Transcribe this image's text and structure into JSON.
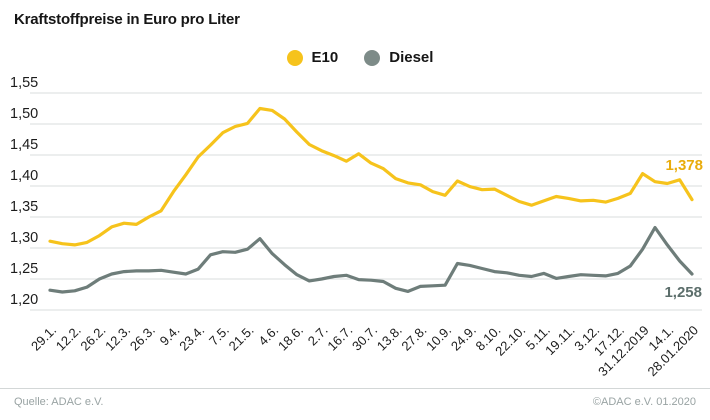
{
  "title": "Kraftstoffpreise in Euro pro Liter",
  "footer": {
    "source": "Quelle: ADAC e.V.",
    "copyright": "©ADAC e.V.  01.2020"
  },
  "colors": {
    "background": "#ffffff",
    "grid": "#d9dddd",
    "axis_text": "#1c1c1c",
    "title_text": "#161616",
    "footer_text": "#99a3a3",
    "divider": "#d3d7d7"
  },
  "chart_data": {
    "type": "line",
    "title": "Kraftstoffpreise in Euro pro Liter",
    "unit": "Euro pro Liter",
    "grid": "horizontal",
    "legend_position": "top-center",
    "ylim": [
      1.2,
      1.55
    ],
    "y_ticks": [
      1.55,
      1.5,
      1.45,
      1.4,
      1.35,
      1.3,
      1.25,
      1.2
    ],
    "y_tick_labels": [
      "1,55",
      "1,50",
      "1,45",
      "1,40",
      "1,35",
      "1,30",
      "1,25",
      "1,20"
    ],
    "x_tick_week_step": 2,
    "x_tick_labels": [
      "29.1.",
      "12.2.",
      "26.2.",
      "12.3.",
      "26.3.",
      "9.4.",
      "23.4.",
      "7.5.",
      "21.5.",
      "4.6.",
      "18.6.",
      "2.7.",
      "16.7.",
      "30.7.",
      "13.8.",
      "27.8.",
      "10.9.",
      "24.9.",
      "8.10.",
      "22.10.",
      "5.11.",
      "19.11.",
      "3.12.",
      "17.12.",
      "31.12.2019",
      "14.1.",
      "28.01.2020"
    ],
    "series": [
      {
        "name": "E10",
        "color": "#F6C31C",
        "legend_dot_color": "#F6C31C",
        "end_label": "1,378",
        "end_label_color": "#E9AC0C",
        "values": [
          1.311,
          1.307,
          1.305,
          1.309,
          1.32,
          1.334,
          1.34,
          1.338,
          1.35,
          1.36,
          1.391,
          1.418,
          1.447,
          1.466,
          1.486,
          1.496,
          1.501,
          1.525,
          1.522,
          1.508,
          1.487,
          1.467,
          1.457,
          1.449,
          1.44,
          1.452,
          1.437,
          1.428,
          1.412,
          1.405,
          1.402,
          1.391,
          1.385,
          1.408,
          1.399,
          1.394,
          1.395,
          1.385,
          1.375,
          1.369,
          1.376,
          1.383,
          1.38,
          1.376,
          1.377,
          1.374,
          1.38,
          1.388,
          1.42,
          1.407,
          1.404,
          1.41,
          1.378
        ]
      },
      {
        "name": "Diesel",
        "color": "#6E7D7A",
        "legend_dot_color": "#7D8B88",
        "end_label": "1,258",
        "end_label_color": "#5C6E6B",
        "values": [
          1.232,
          1.229,
          1.231,
          1.237,
          1.25,
          1.258,
          1.262,
          1.263,
          1.263,
          1.264,
          1.261,
          1.258,
          1.266,
          1.289,
          1.294,
          1.293,
          1.298,
          1.315,
          1.291,
          1.273,
          1.257,
          1.247,
          1.25,
          1.254,
          1.256,
          1.249,
          1.248,
          1.246,
          1.235,
          1.23,
          1.238,
          1.239,
          1.24,
          1.275,
          1.272,
          1.267,
          1.262,
          1.26,
          1.256,
          1.254,
          1.259,
          1.251,
          1.254,
          1.257,
          1.256,
          1.255,
          1.259,
          1.271,
          1.298,
          1.333,
          1.305,
          1.279,
          1.258
        ]
      }
    ]
  }
}
